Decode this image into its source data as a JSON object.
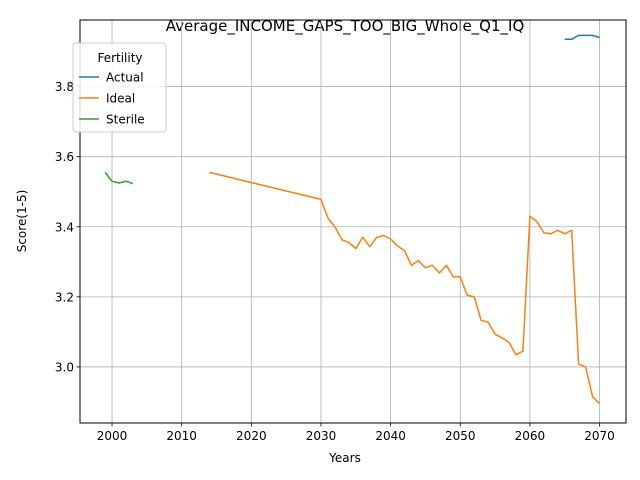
{
  "chart_data": {
    "type": "line",
    "title": "Average_INCOME_GAPS_TOO_BIG_Whole_Q1_IQ",
    "xlabel": "Years",
    "ylabel": "Score(1-5)",
    "xlim": [
      1995.4,
      2073.8
    ],
    "ylim": [
      2.84,
      3.99
    ],
    "xticks": [
      2000,
      2010,
      2020,
      2030,
      2040,
      2050,
      2060,
      2070
    ],
    "yticks": [
      3.0,
      3.2,
      3.4,
      3.6,
      3.8
    ],
    "ytick_labels": [
      "3.0",
      "3.2",
      "3.4",
      "3.6",
      "3.8"
    ],
    "grid": true,
    "legend": {
      "title": "Fertility",
      "position": "top-left"
    },
    "series": [
      {
        "name": "Actual",
        "color": "#1f77b4",
        "x": [
          2065,
          2066,
          2067,
          2068,
          2069,
          2070
        ],
        "y": [
          3.935,
          3.935,
          3.946,
          3.946,
          3.946,
          3.94
        ]
      },
      {
        "name": "Ideal",
        "color": "#ff7f0e",
        "x": [
          2014,
          2030,
          2031,
          2032,
          2033,
          2034,
          2035,
          2036,
          2037,
          2038,
          2039,
          2040,
          2041,
          2042,
          2043,
          2044,
          2045,
          2046,
          2047,
          2048,
          2049,
          2050,
          2051,
          2052,
          2053,
          2054,
          2055,
          2056,
          2057,
          2058,
          2059,
          2060,
          2061,
          2062,
          2063,
          2064,
          2065,
          2066,
          2067,
          2068,
          2069,
          2070
        ],
        "y": [
          3.555,
          3.478,
          3.425,
          3.4,
          3.363,
          3.355,
          3.338,
          3.37,
          3.343,
          3.37,
          3.375,
          3.365,
          3.345,
          3.332,
          3.29,
          3.303,
          3.283,
          3.29,
          3.268,
          3.29,
          3.257,
          3.257,
          3.205,
          3.2,
          3.133,
          3.128,
          3.093,
          3.083,
          3.07,
          3.035,
          3.045,
          3.43,
          3.415,
          3.383,
          3.38,
          3.39,
          3.38,
          3.39,
          3.008,
          3.0,
          2.915,
          2.895
        ]
      },
      {
        "name": "Sterile",
        "color": "#2ca02c",
        "x": [
          1999,
          2000,
          2001,
          2002,
          2003
        ],
        "y": [
          3.555,
          3.53,
          3.525,
          3.53,
          3.523
        ]
      }
    ]
  }
}
